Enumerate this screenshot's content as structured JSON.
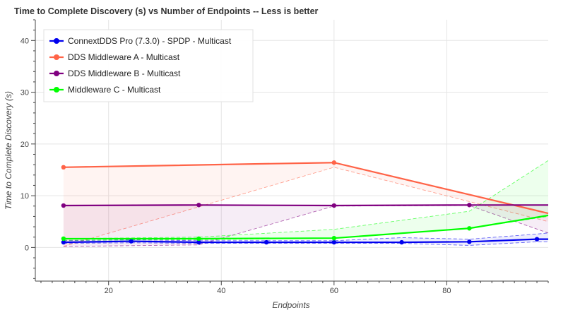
{
  "chart_data": {
    "type": "line",
    "title": "Time to Complete Discovery (s) vs Number of Endpoints  -- Less is better",
    "xlabel": "Endpoints",
    "ylabel": "Time to Complete Discovery (s)",
    "xlim": [
      7,
      98
    ],
    "ylim": [
      -6.5,
      44
    ],
    "x_ticks": [
      20,
      40,
      60,
      80
    ],
    "y_ticks": [
      0,
      10,
      20,
      30,
      40
    ],
    "grid": true,
    "legend_position": "top-left",
    "series": [
      {
        "name": "ConnextDDS Pro (7.3.0) - SPDP - Multicast",
        "color": "#0000ee",
        "x": [
          12,
          24,
          36,
          48,
          60,
          72,
          84,
          96,
          98
        ],
        "values": [
          1.0,
          1.2,
          1.0,
          1.0,
          1.0,
          1.0,
          1.1,
          1.6,
          1.6
        ],
        "band_upper": [
          1.3,
          1.5,
          1.3,
          1.3,
          1.3,
          1.9,
          1.6,
          2.6,
          2.8
        ],
        "band_lower": [
          0.8,
          0.9,
          0.8,
          0.8,
          0.8,
          0.8,
          0.4,
          1.1,
          1.1
        ],
        "marker": true
      },
      {
        "name": "DDS Middleware A - Multicast",
        "color": "#ff6347",
        "x": [
          12,
          60,
          98
        ],
        "values": [
          15.5,
          16.4,
          6.6
        ],
        "band_upper": [
          15.5,
          16.4,
          6.6
        ],
        "band_lower": [
          0.2,
          15.5,
          5.0
        ],
        "marker": true
      },
      {
        "name": "DDS Middleware B - Multicast",
        "color": "#800080",
        "x": [
          12,
          36,
          60,
          84,
          98
        ],
        "values": [
          8.1,
          8.2,
          8.1,
          8.2,
          8.2
        ],
        "band_upper": [
          8.1,
          8.2,
          8.1,
          8.2,
          8.2
        ],
        "band_lower": [
          0.2,
          0.5,
          8.0,
          8.1,
          2.8
        ],
        "marker": true
      },
      {
        "name": "Middleware C - Multicast",
        "color": "#00ff00",
        "x": [
          12,
          36,
          60,
          84,
          98
        ],
        "values": [
          1.7,
          1.7,
          1.8,
          3.7,
          6.2
        ],
        "band_upper": [
          1.7,
          2.0,
          3.5,
          7.0,
          16.8
        ],
        "band_lower": [
          1.4,
          1.5,
          1.8,
          3.7,
          6.0
        ],
        "marker": true
      }
    ]
  }
}
